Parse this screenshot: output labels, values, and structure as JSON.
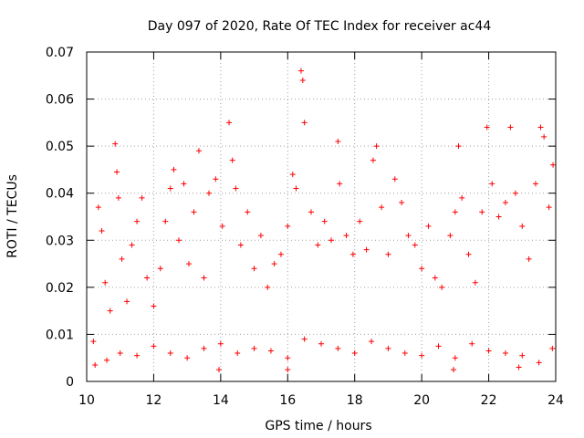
{
  "chart_data": {
    "type": "scatter",
    "title": "Day 097 of 2020, Rate Of TEC Index for receiver ac44",
    "xlabel": "GPS time / hours",
    "ylabel": "ROTI / TECUs",
    "xlim": [
      10,
      24
    ],
    "ylim": [
      0,
      0.07
    ],
    "xticks": [
      10,
      12,
      14,
      16,
      18,
      20,
      22,
      24
    ],
    "xtick_labels": [
      "10",
      "12",
      "14",
      "16",
      "18",
      "20",
      "22",
      "24"
    ],
    "yticks": [
      0,
      0.01,
      0.02,
      0.03,
      0.04,
      0.05,
      0.06,
      0.07
    ],
    "ytick_labels": [
      "0",
      "0.01",
      "0.02",
      "0.03",
      "0.04",
      "0.05",
      "0.06",
      "0.07"
    ],
    "grid": true,
    "marker": "+",
    "color": "#ff0000",
    "series": [
      {
        "name": "ROTI",
        "points": [
          [
            10.2,
            0.0085
          ],
          [
            10.35,
            0.037
          ],
          [
            10.45,
            0.032
          ],
          [
            10.55,
            0.021
          ],
          [
            10.7,
            0.015
          ],
          [
            10.85,
            0.0505
          ],
          [
            10.9,
            0.0445
          ],
          [
            10.95,
            0.039
          ],
          [
            11.05,
            0.026
          ],
          [
            11.2,
            0.017
          ],
          [
            11.35,
            0.029
          ],
          [
            11.5,
            0.034
          ],
          [
            11.65,
            0.039
          ],
          [
            11.8,
            0.022
          ],
          [
            12.0,
            0.016
          ],
          [
            12.2,
            0.024
          ],
          [
            12.35,
            0.034
          ],
          [
            12.5,
            0.041
          ],
          [
            12.6,
            0.045
          ],
          [
            12.75,
            0.03
          ],
          [
            12.9,
            0.042
          ],
          [
            13.05,
            0.025
          ],
          [
            13.2,
            0.036
          ],
          [
            13.35,
            0.049
          ],
          [
            13.5,
            0.022
          ],
          [
            13.65,
            0.04
          ],
          [
            13.85,
            0.043
          ],
          [
            14.05,
            0.033
          ],
          [
            14.25,
            0.055
          ],
          [
            14.35,
            0.047
          ],
          [
            14.45,
            0.041
          ],
          [
            14.6,
            0.029
          ],
          [
            14.8,
            0.036
          ],
          [
            15.0,
            0.024
          ],
          [
            15.2,
            0.031
          ],
          [
            15.4,
            0.02
          ],
          [
            15.6,
            0.025
          ],
          [
            15.8,
            0.027
          ],
          [
            16.0,
            0.033
          ],
          [
            16.15,
            0.044
          ],
          [
            16.25,
            0.041
          ],
          [
            16.4,
            0.066
          ],
          [
            16.45,
            0.064
          ],
          [
            16.5,
            0.055
          ],
          [
            16.7,
            0.036
          ],
          [
            16.9,
            0.029
          ],
          [
            17.1,
            0.034
          ],
          [
            17.3,
            0.03
          ],
          [
            17.5,
            0.051
          ],
          [
            17.55,
            0.042
          ],
          [
            17.75,
            0.031
          ],
          [
            17.95,
            0.027
          ],
          [
            18.15,
            0.034
          ],
          [
            18.35,
            0.028
          ],
          [
            18.55,
            0.047
          ],
          [
            18.65,
            0.05
          ],
          [
            18.8,
            0.037
          ],
          [
            19.0,
            0.027
          ],
          [
            19.2,
            0.043
          ],
          [
            19.4,
            0.038
          ],
          [
            19.6,
            0.031
          ],
          [
            19.8,
            0.029
          ],
          [
            20.0,
            0.024
          ],
          [
            20.2,
            0.033
          ],
          [
            20.4,
            0.022
          ],
          [
            20.6,
            0.02
          ],
          [
            20.85,
            0.031
          ],
          [
            21.0,
            0.036
          ],
          [
            21.1,
            0.05
          ],
          [
            21.2,
            0.039
          ],
          [
            21.4,
            0.027
          ],
          [
            21.6,
            0.021
          ],
          [
            21.8,
            0.036
          ],
          [
            21.95,
            0.054
          ],
          [
            22.1,
            0.042
          ],
          [
            22.3,
            0.035
          ],
          [
            22.5,
            0.038
          ],
          [
            22.65,
            0.054
          ],
          [
            22.8,
            0.04
          ],
          [
            23.0,
            0.033
          ],
          [
            23.2,
            0.026
          ],
          [
            23.4,
            0.042
          ],
          [
            23.55,
            0.054
          ],
          [
            23.65,
            0.052
          ],
          [
            23.8,
            0.037
          ],
          [
            23.92,
            0.046
          ],
          [
            10.6,
            0.0045
          ],
          [
            11.0,
            0.006
          ],
          [
            11.5,
            0.0055
          ],
          [
            12.0,
            0.0075
          ],
          [
            12.5,
            0.006
          ],
          [
            13.0,
            0.005
          ],
          [
            13.5,
            0.007
          ],
          [
            14.0,
            0.008
          ],
          [
            14.5,
            0.006
          ],
          [
            15.0,
            0.007
          ],
          [
            15.5,
            0.0065
          ],
          [
            16.0,
            0.005
          ],
          [
            16.5,
            0.009
          ],
          [
            17.0,
            0.008
          ],
          [
            17.5,
            0.007
          ],
          [
            18.0,
            0.006
          ],
          [
            18.5,
            0.0085
          ],
          [
            19.0,
            0.007
          ],
          [
            19.5,
            0.006
          ],
          [
            20.0,
            0.0055
          ],
          [
            20.5,
            0.0075
          ],
          [
            21.0,
            0.005
          ],
          [
            21.5,
            0.008
          ],
          [
            22.0,
            0.0065
          ],
          [
            22.5,
            0.006
          ],
          [
            23.0,
            0.0055
          ],
          [
            23.5,
            0.004
          ],
          [
            23.9,
            0.007
          ],
          [
            13.95,
            0.0025
          ],
          [
            16.0,
            0.0025
          ],
          [
            20.95,
            0.0025
          ],
          [
            10.25,
            0.0035
          ],
          [
            22.9,
            0.003
          ]
        ]
      }
    ]
  }
}
